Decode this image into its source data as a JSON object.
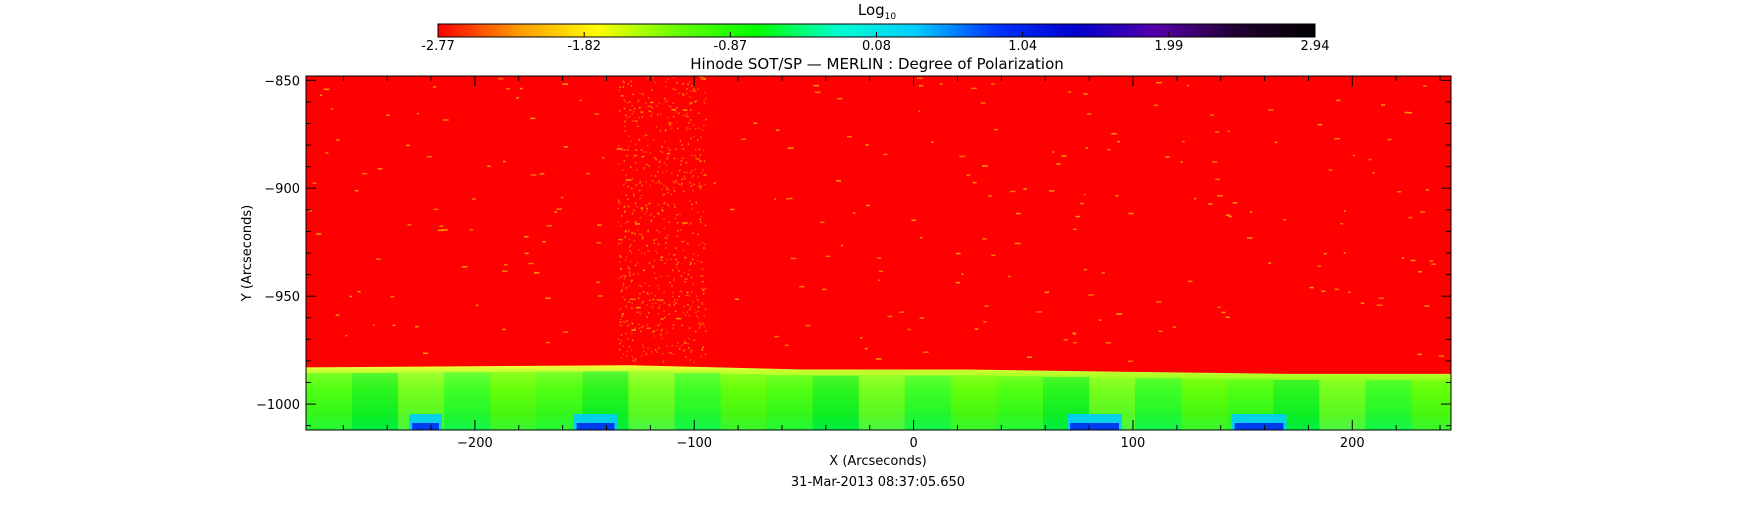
{
  "chart_data": {
    "type": "heatmap",
    "title": "Hinode SOT/SP — MERLIN : Degree of Polarization",
    "xlabel": "X (Arcseconds)",
    "ylabel": "Y (Arcseconds)",
    "timestamp": "31-Mar-2013 08:37:05.650",
    "xlim": [
      -277,
      245
    ],
    "ylim": [
      -1012,
      -848
    ],
    "x_ticks": [
      -200,
      -100,
      0,
      100,
      200
    ],
    "y_ticks": [
      -850,
      -900,
      -950,
      -1000
    ],
    "grid": false,
    "colorbar": {
      "label": "Log",
      "label_subscript": "10",
      "placement": "top",
      "range": [
        -2.77,
        2.94
      ],
      "ticks": [
        "-2.77",
        "-1.82",
        "-0.87",
        "0.08",
        "1.04",
        "1.99",
        "2.94"
      ],
      "colors": [
        "#ff0000",
        "#ff9900",
        "#ffff00",
        "#66ff00",
        "#00ff00",
        "#00ffcc",
        "#00ccff",
        "#0033ff",
        "#0000cc",
        "#5500aa",
        "#220033",
        "#000000"
      ]
    },
    "limb": {
      "description_values": "polarization boundary y (arcsec) along x",
      "x": [
        -277,
        -130,
        -50,
        25,
        95,
        170,
        245
      ],
      "y": [
        -983,
        -982,
        -984,
        -984,
        -985,
        -986,
        -986
      ]
    },
    "regions": {
      "above_limb_value": -2.77,
      "below_limb_value_range": [
        -1.0,
        0.4
      ],
      "high_value_patches_x": [
        [
          -230,
          -215
        ],
        [
          -155,
          -135
        ],
        [
          70,
          95
        ],
        [
          145,
          170
        ]
      ]
    }
  }
}
